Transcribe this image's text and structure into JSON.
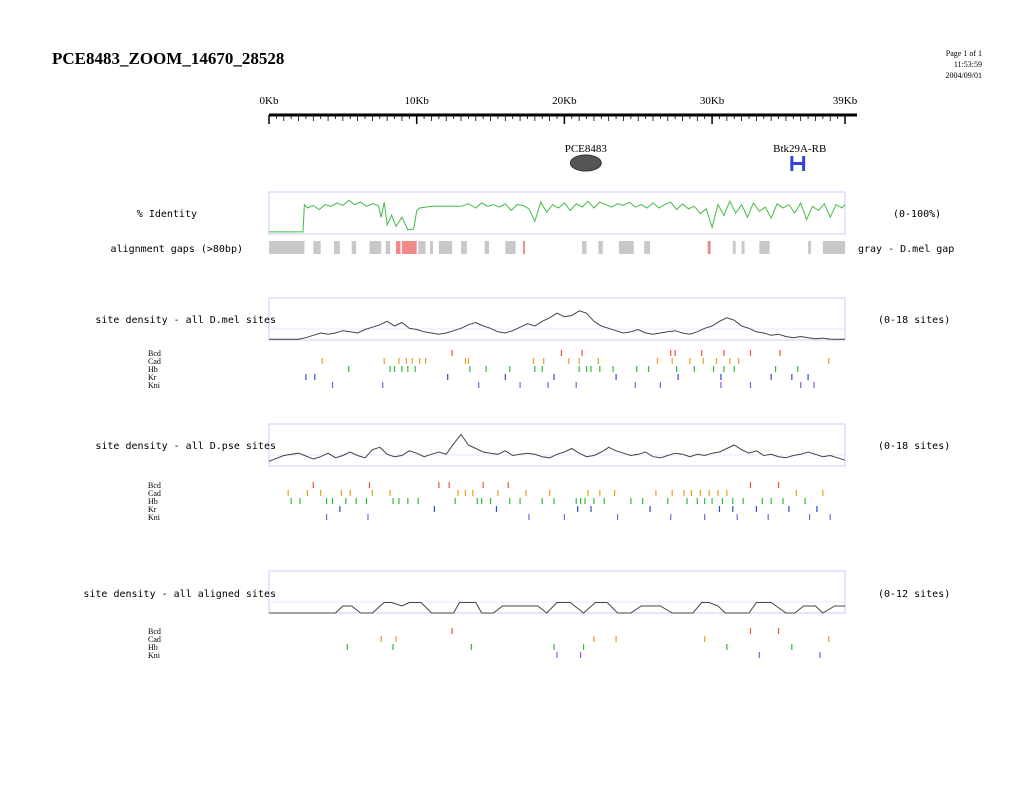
{
  "page": {
    "title": "PCE8483_ZOOM_14670_28528",
    "page_label": "Page 1 of 1",
    "time": "11:53:59",
    "date": "2004/09/01"
  },
  "ruler": {
    "min_kb": 0,
    "max_kb": 39,
    "labels": [
      {
        "kb": 0,
        "text": "0Kb"
      },
      {
        "kb": 10,
        "text": "10Kb"
      },
      {
        "kb": 20,
        "text": "20Kb"
      },
      {
        "kb": 30,
        "text": "30Kb"
      },
      {
        "kb": 39,
        "text": "39Kb"
      }
    ]
  },
  "features": [
    {
      "label": "PCE8483",
      "shape": "ellipse",
      "start_kb": 20.4,
      "end_kb": 22.5,
      "color": "#555555"
    },
    {
      "label": "Btk29A-RB",
      "shape": "gene",
      "start_kb": 35.3,
      "end_kb": 36.3,
      "color": "#3344dd"
    }
  ],
  "colors": {
    "panel_border": "#c8ccff",
    "identity_line": "#44bb44",
    "density_line": "#444444",
    "gap_gray": "#c8c8c8",
    "gap_red": "#f08a8a",
    "Bcd": "#e85a30",
    "Cad": "#e8a020",
    "Hb": "#33bb33",
    "Kr": "#2a4ad8",
    "Kni": "#8a5ce0"
  },
  "chart_data": [
    {
      "type": "line",
      "label": "% Identity",
      "range_label": "(0-100%)",
      "ylim": [
        0,
        100
      ],
      "series": [
        {
          "x_kb": [
            0,
            2.3,
            2.4,
            2.6,
            3.0,
            3.4,
            3.8,
            4.2,
            4.6,
            5.0,
            5.4,
            5.8,
            6.2,
            6.6,
            7.0,
            7.4,
            7.6,
            7.8,
            8.0,
            8.3,
            8.6,
            9.0,
            9.4,
            9.8,
            10.0,
            10.2,
            11.0,
            12.0,
            13.0,
            13.5,
            14.0,
            14.4,
            14.8,
            15.2,
            15.6,
            16.0,
            16.4,
            16.8,
            17.2,
            17.6,
            18.0,
            18.4,
            18.8,
            19.2,
            19.6,
            20.0,
            20.4,
            20.8,
            21.2,
            21.6,
            22.0,
            22.4,
            22.8,
            23.2,
            23.6,
            24.0,
            24.4,
            24.8,
            25.2,
            25.6,
            26.0,
            26.4,
            26.8,
            27.2,
            27.6,
            28.0,
            28.4,
            28.8,
            29.2,
            29.6,
            30.0,
            30.4,
            30.8,
            31.2,
            31.6,
            32.0,
            32.4,
            32.8,
            33.2,
            33.6,
            34.0,
            34.4,
            34.8,
            35.2,
            35.6,
            36.0,
            36.4,
            36.8,
            37.2,
            37.6,
            38.0,
            38.4,
            38.8,
            39.0
          ],
          "y": [
            5,
            5,
            70,
            62,
            68,
            58,
            70,
            66,
            74,
            68,
            80,
            70,
            76,
            66,
            72,
            68,
            40,
            76,
            22,
            45,
            18,
            40,
            10,
            12,
            55,
            62,
            66,
            66,
            66,
            72,
            62,
            74,
            66,
            70,
            64,
            72,
            56,
            70,
            68,
            60,
            30,
            76,
            52,
            70,
            62,
            74,
            56,
            72,
            64,
            78,
            62,
            76,
            70,
            64,
            72,
            68,
            76,
            64,
            70,
            62,
            74,
            62,
            70,
            76,
            58,
            72,
            60,
            66,
            48,
            60,
            16,
            70,
            44,
            78,
            50,
            70,
            40,
            74,
            54,
            64,
            38,
            72,
            62,
            70,
            50,
            74,
            34,
            66,
            56,
            72,
            40,
            70,
            62,
            70
          ]
        }
      ]
    },
    {
      "type": "bar",
      "label": "alignment gaps (>80bp)",
      "range_label": "gray - D.mel gap",
      "gaps_kb": [
        [
          0.0,
          2.4,
          "gray"
        ],
        [
          3.0,
          3.5,
          "gray"
        ],
        [
          4.4,
          4.8,
          "gray"
        ],
        [
          5.6,
          5.9,
          "gray"
        ],
        [
          6.8,
          7.6,
          "gray"
        ],
        [
          7.9,
          8.2,
          "gray"
        ],
        [
          8.6,
          8.9,
          "red"
        ],
        [
          9.0,
          10.0,
          "red"
        ],
        [
          10.1,
          10.6,
          "gray"
        ],
        [
          10.9,
          11.1,
          "gray"
        ],
        [
          11.5,
          12.4,
          "gray"
        ],
        [
          13.0,
          13.4,
          "gray"
        ],
        [
          14.6,
          14.9,
          "gray"
        ],
        [
          16.0,
          16.7,
          "gray"
        ],
        [
          17.2,
          17.3,
          "red"
        ],
        [
          21.2,
          21.5,
          "gray"
        ],
        [
          22.3,
          22.6,
          "gray"
        ],
        [
          23.7,
          24.7,
          "gray"
        ],
        [
          25.4,
          25.8,
          "gray"
        ],
        [
          29.7,
          29.9,
          "red"
        ],
        [
          31.4,
          31.6,
          "gray"
        ],
        [
          32.0,
          32.2,
          "gray"
        ],
        [
          33.2,
          33.9,
          "gray"
        ],
        [
          36.5,
          36.7,
          "gray"
        ],
        [
          37.5,
          39.0,
          "gray"
        ]
      ]
    },
    {
      "type": "area",
      "label": "site density - all D.mel sites",
      "range_label": "(0-18 sites)",
      "ylim": [
        0,
        18
      ],
      "series": [
        {
          "x_kb": [
            0,
            2.0,
            2.5,
            3.0,
            3.5,
            4.0,
            4.5,
            5.0,
            5.5,
            6.0,
            6.5,
            7.0,
            7.5,
            8.0,
            8.5,
            9.0,
            9.5,
            10.0,
            10.5,
            11.0,
            11.5,
            12.0,
            12.5,
            13.0,
            13.5,
            14.0,
            14.5,
            15.0,
            15.5,
            16.0,
            16.5,
            17.0,
            17.5,
            18.0,
            18.5,
            19.0,
            19.5,
            20.0,
            20.5,
            21.0,
            21.5,
            22.0,
            22.5,
            23.0,
            23.5,
            24.0,
            24.5,
            25.0,
            25.5,
            26.0,
            26.5,
            27.0,
            27.5,
            28.0,
            28.5,
            29.0,
            29.5,
            30.0,
            30.5,
            31.0,
            31.5,
            32.0,
            32.5,
            33.0,
            33.5,
            34.0,
            34.5,
            35.0,
            35.5,
            36.0,
            36.5,
            37.0,
            37.5,
            38.0,
            38.5,
            39.0
          ],
          "y": [
            0.3,
            0.3,
            1.0,
            2.0,
            3.0,
            2.5,
            3.0,
            4.0,
            3.5,
            3.0,
            4.5,
            5.5,
            6.5,
            8.0,
            6.0,
            7.5,
            5.0,
            4.5,
            3.5,
            3.0,
            2.5,
            3.0,
            4.0,
            5.0,
            6.5,
            7.5,
            6.0,
            5.0,
            3.5,
            3.0,
            4.0,
            5.5,
            7.0,
            6.0,
            8.0,
            9.5,
            11.5,
            10.0,
            10.5,
            12.5,
            11.5,
            8.0,
            6.0,
            5.0,
            4.0,
            3.0,
            3.5,
            4.5,
            3.0,
            2.5,
            3.0,
            3.5,
            4.0,
            3.0,
            2.5,
            3.5,
            5.0,
            6.0,
            8.0,
            9.5,
            8.5,
            6.0,
            5.0,
            3.5,
            3.0,
            2.0,
            2.5,
            1.5,
            1.0,
            1.5,
            1.0,
            0.5,
            0.8,
            0.4,
            0.3,
            0.3
          ]
        }
      ],
      "sites": {
        "Bcd": [
          12.4,
          19.8,
          21.2,
          27.2,
          27.5,
          29.3,
          30.8,
          32.6,
          34.6
        ],
        "Cad": [
          3.6,
          7.8,
          8.8,
          9.3,
          9.7,
          10.2,
          10.6,
          13.3,
          13.5,
          17.9,
          18.6,
          20.3,
          21.0,
          22.3,
          26.3,
          27.3,
          28.5,
          29.4,
          30.3,
          31.2,
          31.8,
          37.9
        ],
        "Hb": [
          5.4,
          8.2,
          8.5,
          9.0,
          9.4,
          9.9,
          13.6,
          14.7,
          16.3,
          18.0,
          18.5,
          21.0,
          21.5,
          21.8,
          22.4,
          23.3,
          24.9,
          25.7,
          27.6,
          28.8,
          30.1,
          30.8,
          31.5,
          34.3,
          35.8
        ],
        "Kr": [
          2.5,
          3.1,
          12.1,
          16.0,
          19.3,
          23.5,
          27.7,
          30.6,
          34.0,
          35.4,
          36.5
        ],
        "Kni": [
          4.3,
          7.7,
          14.2,
          17.0,
          18.9,
          20.8,
          24.8,
          26.5,
          30.6,
          32.6,
          36.0,
          36.9
        ]
      }
    },
    {
      "type": "area",
      "label": "site density - all D.pse sites",
      "range_label": "(0-18 sites)",
      "ylim": [
        0,
        18
      ],
      "series": [
        {
          "x_kb": [
            0,
            1.0,
            2.0,
            3.0,
            3.5,
            4.0,
            4.5,
            5.0,
            5.5,
            6.0,
            6.5,
            7.0,
            7.5,
            8.0,
            8.5,
            9.0,
            9.5,
            10.0,
            10.5,
            11.0,
            11.5,
            12.0,
            12.5,
            13.0,
            13.5,
            14.0,
            14.5,
            15.0,
            15.5,
            16.0,
            16.5,
            17.0,
            17.5,
            18.0,
            18.5,
            19.0,
            19.5,
            20.0,
            20.5,
            21.0,
            21.5,
            22.0,
            22.5,
            23.0,
            23.5,
            24.0,
            24.5,
            25.0,
            25.5,
            26.0,
            26.5,
            27.0,
            27.5,
            28.0,
            28.5,
            29.0,
            29.5,
            30.0,
            30.5,
            31.0,
            31.5,
            32.0,
            32.5,
            33.0,
            33.5,
            34.0,
            34.5,
            35.0,
            35.5,
            36.0,
            36.5,
            37.0,
            37.5,
            38.0,
            38.5,
            39.0
          ],
          "y": [
            2.0,
            4.5,
            5.5,
            3.0,
            4.0,
            5.5,
            3.5,
            4.5,
            6.0,
            4.5,
            3.5,
            7.0,
            8.0,
            5.0,
            4.0,
            4.5,
            6.5,
            5.5,
            4.0,
            5.0,
            6.0,
            5.0,
            9.5,
            13.5,
            9.0,
            7.5,
            6.0,
            5.5,
            5.0,
            6.5,
            4.5,
            5.0,
            5.5,
            5.0,
            4.0,
            3.5,
            5.0,
            6.0,
            7.5,
            5.5,
            4.0,
            4.5,
            6.0,
            8.0,
            6.5,
            5.5,
            4.5,
            5.0,
            6.0,
            4.0,
            3.5,
            4.5,
            5.5,
            5.0,
            4.0,
            5.0,
            4.5,
            5.5,
            6.0,
            7.5,
            9.0,
            7.0,
            5.5,
            6.5,
            4.5,
            5.0,
            4.0,
            3.5,
            4.5,
            5.0,
            6.0,
            5.0,
            4.0,
            4.5,
            3.5,
            2.5
          ]
        }
      ],
      "sites": {
        "Bcd": [
          3.0,
          6.8,
          11.5,
          12.2,
          14.5,
          16.2,
          32.6,
          34.5
        ],
        "Cad": [
          1.3,
          2.6,
          3.5,
          4.9,
          5.5,
          7.0,
          8.2,
          12.8,
          13.3,
          13.8,
          15.5,
          17.4,
          19.0,
          21.6,
          22.4,
          23.4,
          26.2,
          27.3,
          28.1,
          28.6,
          29.2,
          29.8,
          30.4,
          31.0,
          35.7,
          37.5
        ],
        "Hb": [
          1.5,
          2.1,
          3.9,
          4.3,
          5.2,
          5.9,
          6.6,
          8.4,
          8.8,
          9.4,
          10.1,
          12.6,
          14.1,
          14.4,
          15.0,
          16.3,
          17.0,
          18.5,
          19.3,
          20.8,
          21.1,
          21.4,
          22.0,
          22.7,
          24.5,
          25.3,
          27.0,
          28.3,
          29.0,
          29.5,
          30.0,
          30.7,
          31.4,
          32.1,
          33.4,
          34.0,
          34.8,
          36.3
        ],
        "Kr": [
          4.8,
          11.2,
          15.4,
          20.9,
          21.8,
          25.8,
          30.5,
          31.4,
          33.0,
          35.2,
          37.1
        ],
        "Kni": [
          3.9,
          6.7,
          17.6,
          20.0,
          23.6,
          27.2,
          29.5,
          31.7,
          33.8,
          36.6,
          38.0
        ]
      }
    },
    {
      "type": "area",
      "label": "site density - all aligned sites",
      "range_label": "(0-12 sites)",
      "ylim": [
        0,
        12
      ],
      "series": [
        {
          "x_kb": [
            0,
            4.5,
            5.0,
            5.6,
            6.2,
            7.0,
            7.8,
            8.3,
            9.0,
            9.5,
            10.3,
            11.0,
            12.5,
            12.9,
            14.0,
            14.4,
            15.2,
            15.8,
            18.2,
            18.8,
            19.5,
            20.4,
            21.3,
            22.1,
            22.9,
            23.6,
            24.5,
            25.2,
            26.5,
            27.3,
            28.7,
            29.3,
            29.8,
            30.4,
            30.9,
            32.5,
            33.0,
            34.0,
            35.0,
            35.6,
            36.2,
            37.0,
            37.5,
            38.3,
            39.0
          ],
          "y": [
            0,
            0,
            2.0,
            2.0,
            0,
            0,
            3.0,
            3.0,
            2.0,
            3.0,
            3.0,
            0,
            0,
            3.0,
            3.0,
            0,
            0,
            2.0,
            2.0,
            0,
            3.0,
            3.0,
            0,
            3.0,
            3.0,
            0,
            0,
            2.0,
            2.0,
            0,
            0,
            3.0,
            3.0,
            2.0,
            0,
            0,
            3.0,
            3.0,
            0,
            0,
            2.0,
            2.0,
            0,
            2.0,
            2.0
          ]
        }
      ],
      "sites": {
        "Bcd": [
          12.4,
          32.6,
          34.5
        ],
        "Cad": [
          7.6,
          8.6,
          22.0,
          23.5,
          29.5,
          37.9
        ],
        "Hb": [
          5.3,
          8.4,
          13.7,
          19.3,
          21.3,
          31.0,
          35.4
        ],
        "Kni": [
          19.5,
          21.1,
          33.2,
          37.3
        ]
      }
    }
  ]
}
